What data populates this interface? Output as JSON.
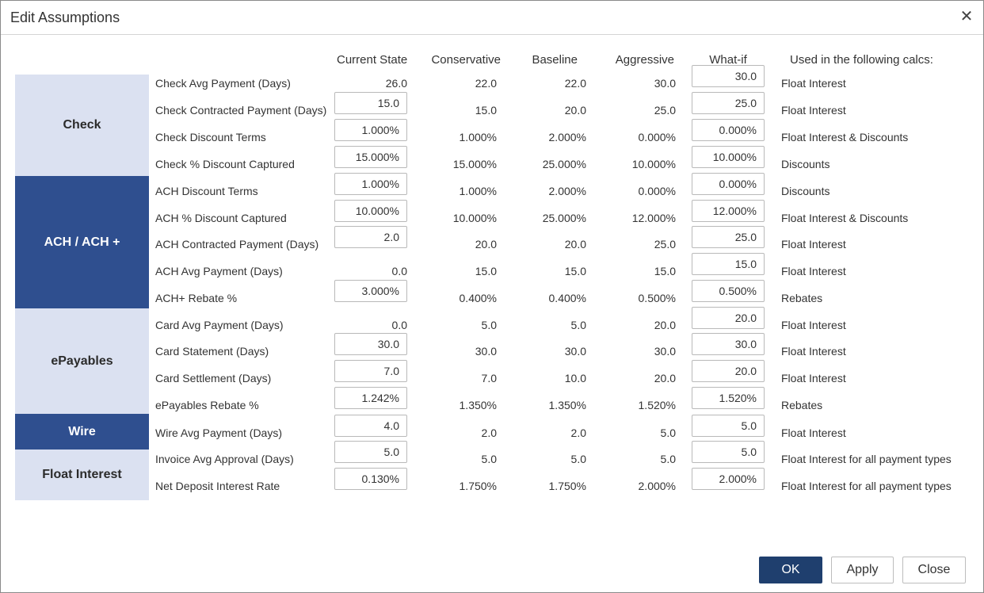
{
  "dialog": {
    "title": "Edit Assumptions",
    "close_icon": "close-icon"
  },
  "columns": {
    "current": "Current State",
    "conservative": "Conservative",
    "baseline": "Baseline",
    "aggressive": "Aggressive",
    "whatif": "What-if",
    "used": "Used in the following calcs:"
  },
  "groups": [
    {
      "label": "Check",
      "style": "light"
    },
    {
      "label": "ACH / ACH +",
      "style": "dark"
    },
    {
      "label": "ePayables",
      "style": "light"
    },
    {
      "label": "Wire",
      "style": "dark"
    },
    {
      "label": "Float Interest",
      "style": "light"
    }
  ],
  "rows": [
    {
      "label": "Check Avg Payment (Days)",
      "current": "26.0",
      "current_editable": false,
      "conservative": "22.0",
      "baseline": "22.0",
      "aggressive": "30.0",
      "whatif": "30.0",
      "used": "Float Interest"
    },
    {
      "label": "Check Contracted Payment (Days)",
      "current": "15.0",
      "current_editable": true,
      "conservative": "15.0",
      "baseline": "20.0",
      "aggressive": "25.0",
      "whatif": "25.0",
      "used": "Float Interest"
    },
    {
      "label": "Check Discount Terms",
      "current": "1.000%",
      "current_editable": true,
      "conservative": "1.000%",
      "baseline": "2.000%",
      "aggressive": "0.000%",
      "whatif": "0.000%",
      "used": "Float Interest & Discounts"
    },
    {
      "label": "Check % Discount Captured",
      "current": "15.000%",
      "current_editable": true,
      "conservative": "15.000%",
      "baseline": "25.000%",
      "aggressive": "10.000%",
      "whatif": "10.000%",
      "used": "Discounts"
    },
    {
      "label": "ACH Discount Terms",
      "current": "1.000%",
      "current_editable": true,
      "conservative": "1.000%",
      "baseline": "2.000%",
      "aggressive": "0.000%",
      "whatif": "0.000%",
      "used": "Discounts"
    },
    {
      "label": "ACH % Discount Captured",
      "current": "10.000%",
      "current_editable": true,
      "conservative": "10.000%",
      "baseline": "25.000%",
      "aggressive": "12.000%",
      "whatif": "12.000%",
      "used": "Float Interest & Discounts"
    },
    {
      "label": "ACH Contracted Payment (Days)",
      "current": "2.0",
      "current_editable": true,
      "conservative": "20.0",
      "baseline": "20.0",
      "aggressive": "25.0",
      "whatif": "25.0",
      "used": "Float Interest"
    },
    {
      "label": "ACH Avg Payment (Days)",
      "current": "0.0",
      "current_editable": false,
      "conservative": "15.0",
      "baseline": "15.0",
      "aggressive": "15.0",
      "whatif": "15.0",
      "used": "Float Interest"
    },
    {
      "label": "ACH+ Rebate %",
      "current": "3.000%",
      "current_editable": true,
      "conservative": "0.400%",
      "baseline": "0.400%",
      "aggressive": "0.500%",
      "whatif": "0.500%",
      "used": "Rebates"
    },
    {
      "label": "Card Avg Payment (Days)",
      "current": "0.0",
      "current_editable": false,
      "conservative": "5.0",
      "baseline": "5.0",
      "aggressive": "20.0",
      "whatif": "20.0",
      "used": "Float Interest"
    },
    {
      "label": "Card Statement (Days)",
      "current": "30.0",
      "current_editable": true,
      "conservative": "30.0",
      "baseline": "30.0",
      "aggressive": "30.0",
      "whatif": "30.0",
      "used": "Float Interest"
    },
    {
      "label": "Card Settlement (Days)",
      "current": "7.0",
      "current_editable": true,
      "conservative": "7.0",
      "baseline": "10.0",
      "aggressive": "20.0",
      "whatif": "20.0",
      "used": "Float Interest"
    },
    {
      "label": "ePayables Rebate %",
      "current": "1.242%",
      "current_editable": true,
      "conservative": "1.350%",
      "baseline": "1.350%",
      "aggressive": "1.520%",
      "whatif": "1.520%",
      "used": "Rebates"
    },
    {
      "label": "Wire Avg Payment (Days)",
      "current": "4.0",
      "current_editable": true,
      "conservative": "2.0",
      "baseline": "2.0",
      "aggressive": "5.0",
      "whatif": "5.0",
      "used": "Float Interest"
    },
    {
      "label": "Invoice Avg Approval (Days)",
      "current": "5.0",
      "current_editable": true,
      "conservative": "5.0",
      "baseline": "5.0",
      "aggressive": "5.0",
      "whatif": "5.0",
      "used": "Float Interest for all payment types"
    },
    {
      "label": "Net Deposit Interest Rate",
      "current": "0.130%",
      "current_editable": true,
      "conservative": "1.750%",
      "baseline": "1.750%",
      "aggressive": "2.000%",
      "whatif": "2.000%",
      "used": "Float Interest for all payment types"
    }
  ],
  "buttons": {
    "ok": "OK",
    "apply": "Apply",
    "close": "Close"
  },
  "colors": {
    "group_light": "#dbe1f1",
    "group_dark": "#2f4f8f",
    "primary_button": "#1f3f6e"
  }
}
